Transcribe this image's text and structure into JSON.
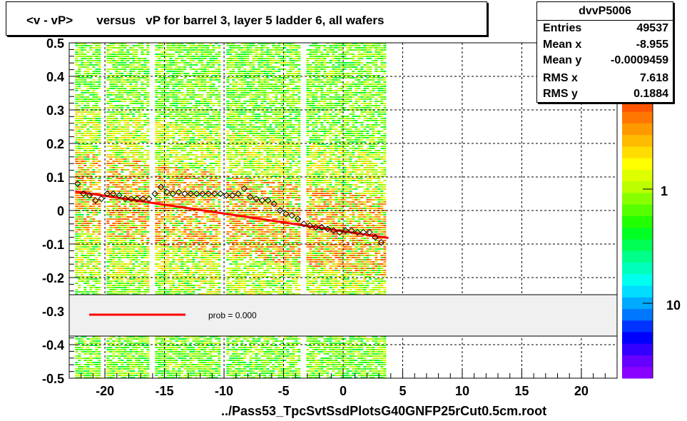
{
  "title": "<v - vP>       versus   vP for barrel 3, layer 5 ladder 6, all wafers",
  "footer": "../Pass53_TpcSvtSsdPlotsG40GNFP25rCut0.5cm.root",
  "stats": {
    "name": "dvvP5006",
    "rows": [
      {
        "label": "Entries",
        "value": "49537"
      },
      {
        "label": "Mean x",
        "value": "-8.955"
      },
      {
        "label": "Mean y",
        "value": "-0.0009459"
      },
      {
        "label": "RMS x",
        "value": "7.618"
      },
      {
        "label": "RMS y",
        "value": "0.1884"
      }
    ]
  },
  "legend": {
    "fit_label": "prob = 0.000"
  },
  "colors": {
    "fit_line": "#ff0000",
    "profile_markers": "#000000",
    "legend_fill": "#f0f0f0"
  },
  "chart_data": {
    "type": "heatmap",
    "title": "<v - vP>       versus   vP for barrel 3, layer 5 ladder 6, all wafers",
    "xlabel": "",
    "ylabel": "",
    "xlim": [
      -23,
      23
    ],
    "ylim": [
      -0.5,
      0.5
    ],
    "grid": true,
    "x_ticks": [
      -20,
      -15,
      -10,
      -5,
      0,
      5,
      10,
      15,
      20
    ],
    "y_ticks": [
      -0.5,
      -0.4,
      -0.3,
      -0.2,
      -0.1,
      0,
      0.1,
      0.2,
      0.3,
      0.4,
      0.5
    ],
    "x_tick_labels": [
      "-20",
      "-15",
      "-10",
      "-5",
      "0",
      "5",
      "10",
      "15",
      "20"
    ],
    "y_tick_labels": [
      "-0.5",
      "-0.4",
      "-0.3",
      "-0.2",
      "-0.1",
      "0",
      "0.1",
      "0.2",
      "0.3",
      "0.4",
      "0.5"
    ],
    "colorbar_labels": [
      "1",
      "10"
    ],
    "filled_x_range": [
      -22.5,
      3.5
    ],
    "gap_x_positions": [
      -20.2,
      -16.2,
      -10.2,
      -3.5
    ],
    "profile_points": [
      {
        "x": -22.3,
        "y": 0.08
      },
      {
        "x": -21.8,
        "y": 0.05
      },
      {
        "x": -21.3,
        "y": 0.045
      },
      {
        "x": -20.8,
        "y": 0.03
      },
      {
        "x": -20.3,
        "y": 0.035
      },
      {
        "x": -19.8,
        "y": 0.05
      },
      {
        "x": -19.3,
        "y": 0.05
      },
      {
        "x": -18.8,
        "y": 0.045
      },
      {
        "x": -18.3,
        "y": 0.035
      },
      {
        "x": -17.8,
        "y": 0.035
      },
      {
        "x": -17.3,
        "y": 0.035
      },
      {
        "x": -16.8,
        "y": 0.035
      },
      {
        "x": -16.3,
        "y": 0.035
      },
      {
        "x": -15.8,
        "y": 0.05
      },
      {
        "x": -15.3,
        "y": 0.07
      },
      {
        "x": -14.8,
        "y": 0.055
      },
      {
        "x": -14.3,
        "y": 0.05
      },
      {
        "x": -13.8,
        "y": 0.055
      },
      {
        "x": -13.3,
        "y": 0.05
      },
      {
        "x": -12.8,
        "y": 0.05
      },
      {
        "x": -12.3,
        "y": 0.05
      },
      {
        "x": -11.8,
        "y": 0.05
      },
      {
        "x": -11.3,
        "y": 0.05
      },
      {
        "x": -10.8,
        "y": 0.05
      },
      {
        "x": -10.3,
        "y": 0.05
      },
      {
        "x": -9.8,
        "y": 0.045
      },
      {
        "x": -9.3,
        "y": 0.045
      },
      {
        "x": -8.8,
        "y": 0.05
      },
      {
        "x": -8.3,
        "y": 0.065
      },
      {
        "x": -7.8,
        "y": 0.04
      },
      {
        "x": -7.3,
        "y": 0.035
      },
      {
        "x": -6.8,
        "y": 0.03
      },
      {
        "x": -6.3,
        "y": 0.03
      },
      {
        "x": -5.8,
        "y": 0.02
      },
      {
        "x": -5.3,
        "y": 0.0
      },
      {
        "x": -4.8,
        "y": -0.01
      },
      {
        "x": -4.3,
        "y": -0.015
      },
      {
        "x": -3.8,
        "y": -0.025
      },
      {
        "x": -3.3,
        "y": -0.04
      },
      {
        "x": -2.8,
        "y": -0.045
      },
      {
        "x": -2.3,
        "y": -0.05
      },
      {
        "x": -1.8,
        "y": -0.05
      },
      {
        "x": -1.3,
        "y": -0.055
      },
      {
        "x": -0.8,
        "y": -0.06
      },
      {
        "x": -0.3,
        "y": -0.065
      },
      {
        "x": 0.2,
        "y": -0.06
      },
      {
        "x": 0.7,
        "y": -0.06
      },
      {
        "x": 1.2,
        "y": -0.065
      },
      {
        "x": 1.7,
        "y": -0.065
      },
      {
        "x": 2.2,
        "y": -0.065
      },
      {
        "x": 2.7,
        "y": -0.08
      },
      {
        "x": 3.2,
        "y": -0.095
      }
    ],
    "fit_line": {
      "x": [
        -22.5,
        3.8
      ],
      "y": [
        0.057,
        -0.082
      ]
    }
  }
}
